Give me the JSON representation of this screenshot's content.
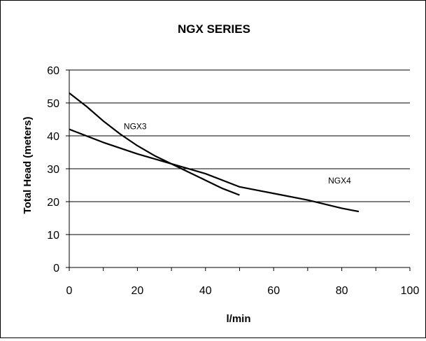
{
  "chart_data": {
    "type": "line",
    "title": "NGX SERIES",
    "xlabel": "l/min",
    "ylabel": "Total Head (meters)",
    "xlim": [
      0,
      100
    ],
    "ylim": [
      0,
      60
    ],
    "x_ticks": [
      0,
      20,
      40,
      60,
      80,
      100
    ],
    "y_ticks": [
      0,
      10,
      20,
      30,
      40,
      50,
      60
    ],
    "grid": "horizontal",
    "legend": "none",
    "series": [
      {
        "name": "NGX3",
        "color": "#000000",
        "x": [
          0,
          5,
          10,
          15,
          20,
          25,
          30,
          35,
          40,
          45,
          50
        ],
        "y": [
          53,
          49,
          44.5,
          40.5,
          37,
          34,
          31.5,
          29,
          26.5,
          24,
          22
        ]
      },
      {
        "name": "NGX4",
        "color": "#000000",
        "x": [
          0,
          10,
          20,
          30,
          40,
          50,
          60,
          70,
          80,
          85
        ],
        "y": [
          42,
          38,
          34.5,
          31.5,
          28.5,
          24.5,
          22.5,
          20.5,
          18,
          17
        ]
      }
    ]
  }
}
